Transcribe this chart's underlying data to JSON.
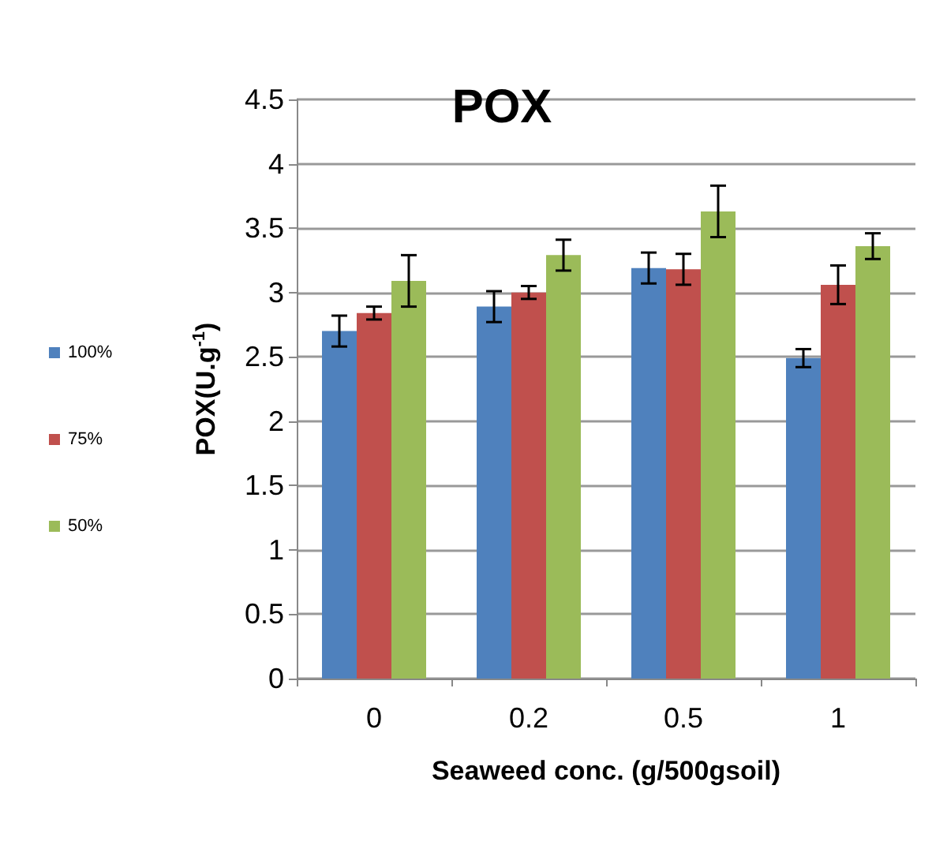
{
  "chart_data": {
    "type": "bar",
    "title": "POX",
    "xlabel": "Seaweed conc. (g/500gsoil)",
    "ylabel": "POX(U.g$^{-1}$)",
    "categories": [
      "0",
      "0.2",
      "0.5",
      "1"
    ],
    "series": [
      {
        "name": "100%",
        "color": "#4f81bd",
        "values": [
          2.7,
          2.89,
          3.19,
          2.49
        ],
        "errors": [
          0.12,
          0.12,
          0.12,
          0.07
        ]
      },
      {
        "name": "75%",
        "color": "#c0504d",
        "values": [
          2.84,
          3.0,
          3.18,
          3.06
        ],
        "errors": [
          0.05,
          0.05,
          0.12,
          0.15
        ]
      },
      {
        "name": "50%",
        "color": "#9bbb59",
        "values": [
          3.09,
          3.29,
          3.63,
          3.36
        ],
        "errors": [
          0.2,
          0.12,
          0.2,
          0.1
        ]
      }
    ],
    "ylim": [
      0,
      4.5
    ],
    "yticks": [
      0,
      0.5,
      1,
      1.5,
      2,
      2.5,
      3,
      3.5,
      4,
      4.5
    ],
    "grid": "y",
    "legend": "left"
  }
}
